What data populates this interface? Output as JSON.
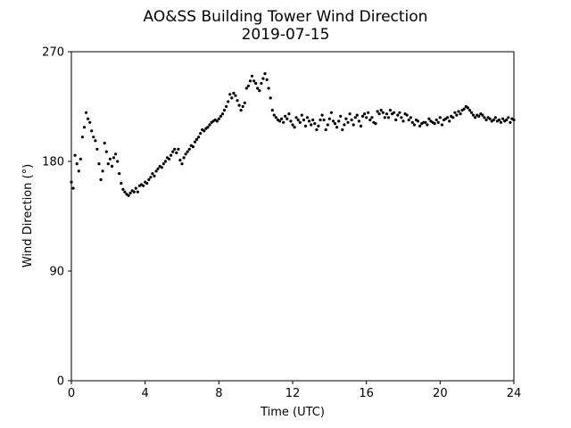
{
  "chart_data": {
    "type": "scatter",
    "title": "AO&SS Building Tower Wind Direction",
    "subtitle": "2019-07-15",
    "xlabel": "Time (UTC)",
    "ylabel": "Wind Direction (°)",
    "xlim": [
      0,
      24
    ],
    "ylim": [
      0,
      270
    ],
    "xticks": [
      0,
      4,
      8,
      12,
      16,
      20,
      24
    ],
    "yticks": [
      0,
      90,
      180,
      270
    ],
    "grid": false,
    "marker_color": "#000000",
    "x": [
      0.0,
      0.1,
      0.2,
      0.3,
      0.4,
      0.5,
      0.6,
      0.7,
      0.8,
      0.9,
      1.0,
      1.1,
      1.2,
      1.3,
      1.4,
      1.5,
      1.6,
      1.7,
      1.8,
      1.9,
      2.0,
      2.1,
      2.2,
      2.3,
      2.4,
      2.5,
      2.6,
      2.7,
      2.8,
      2.9,
      3.0,
      3.1,
      3.2,
      3.3,
      3.4,
      3.5,
      3.6,
      3.7,
      3.8,
      3.9,
      4.0,
      4.1,
      4.2,
      4.3,
      4.4,
      4.5,
      4.6,
      4.7,
      4.8,
      4.9,
      5.0,
      5.1,
      5.2,
      5.3,
      5.4,
      5.5,
      5.6,
      5.7,
      5.8,
      5.9,
      6.0,
      6.1,
      6.2,
      6.3,
      6.4,
      6.5,
      6.6,
      6.7,
      6.8,
      6.9,
      7.0,
      7.1,
      7.2,
      7.3,
      7.4,
      7.5,
      7.6,
      7.7,
      7.8,
      7.9,
      8.0,
      8.1,
      8.2,
      8.3,
      8.4,
      8.5,
      8.6,
      8.7,
      8.8,
      8.9,
      9.0,
      9.1,
      9.2,
      9.3,
      9.4,
      9.5,
      9.6,
      9.7,
      9.8,
      9.9,
      10.0,
      10.1,
      10.2,
      10.3,
      10.4,
      10.5,
      10.6,
      10.7,
      10.8,
      10.9,
      11.0,
      11.1,
      11.2,
      11.3,
      11.4,
      11.5,
      11.6,
      11.7,
      11.8,
      11.9,
      12.0,
      12.1,
      12.2,
      12.3,
      12.4,
      12.5,
      12.6,
      12.7,
      12.8,
      12.9,
      13.0,
      13.1,
      13.2,
      13.3,
      13.4,
      13.5,
      13.6,
      13.7,
      13.8,
      13.9,
      14.0,
      14.1,
      14.2,
      14.3,
      14.4,
      14.5,
      14.6,
      14.7,
      14.8,
      14.9,
      15.0,
      15.1,
      15.2,
      15.3,
      15.4,
      15.5,
      15.6,
      15.7,
      15.8,
      15.9,
      16.0,
      16.1,
      16.2,
      16.3,
      16.4,
      16.5,
      16.6,
      16.7,
      16.8,
      16.9,
      17.0,
      17.1,
      17.2,
      17.3,
      17.4,
      17.5,
      17.6,
      17.7,
      17.8,
      17.9,
      18.0,
      18.1,
      18.2,
      18.3,
      18.4,
      18.5,
      18.6,
      18.7,
      18.8,
      18.9,
      19.0,
      19.1,
      19.2,
      19.3,
      19.4,
      19.5,
      19.6,
      19.7,
      19.8,
      19.9,
      20.0,
      20.1,
      20.2,
      20.3,
      20.4,
      20.5,
      20.6,
      20.7,
      20.8,
      20.9,
      21.0,
      21.1,
      21.2,
      21.3,
      21.4,
      21.5,
      21.6,
      21.7,
      21.8,
      21.9,
      22.0,
      22.1,
      22.2,
      22.3,
      22.4,
      22.5,
      22.6,
      22.7,
      22.8,
      22.9,
      23.0,
      23.1,
      23.2,
      23.3,
      23.4,
      23.5,
      23.6,
      23.7,
      23.8,
      23.9,
      24.0
    ],
    "y": [
      163,
      158,
      185,
      178,
      172,
      182,
      200,
      208,
      220,
      215,
      212,
      205,
      200,
      197,
      190,
      178,
      165,
      172,
      195,
      188,
      178,
      182,
      176,
      183,
      186,
      180,
      170,
      162,
      157,
      155,
      153,
      152,
      154,
      156,
      155,
      158,
      155,
      160,
      161,
      160,
      163,
      162,
      165,
      167,
      170,
      168,
      172,
      174,
      176,
      175,
      178,
      180,
      183,
      182,
      185,
      188,
      190,
      187,
      190,
      181,
      178,
      183,
      186,
      188,
      190,
      193,
      192,
      196,
      198,
      200,
      203,
      206,
      205,
      207,
      208,
      210,
      212,
      213,
      214,
      213,
      215,
      217,
      219,
      222,
      225,
      229,
      235,
      232,
      236,
      234,
      230,
      226,
      222,
      225,
      228,
      240,
      242,
      246,
      250,
      246,
      244,
      240,
      238,
      244,
      248,
      252,
      247,
      240,
      232,
      222,
      218,
      216,
      214,
      213,
      215,
      212,
      217,
      215,
      219,
      213,
      210,
      208,
      216,
      214,
      212,
      218,
      214,
      209,
      216,
      213,
      210,
      214,
      211,
      206,
      209,
      214,
      218,
      214,
      206,
      210,
      215,
      220,
      213,
      211,
      208,
      213,
      217,
      206,
      210,
      215,
      212,
      219,
      214,
      210,
      216,
      218,
      213,
      209,
      217,
      219,
      216,
      220,
      214,
      216,
      212,
      211,
      221,
      219,
      222,
      220,
      216,
      219,
      216,
      222,
      219,
      220,
      214,
      218,
      220,
      216,
      213,
      219,
      218,
      214,
      216,
      212,
      210,
      214,
      213,
      209,
      211,
      212,
      212,
      210,
      215,
      213,
      212,
      211,
      214,
      212,
      216,
      210,
      214,
      215,
      216,
      213,
      217,
      216,
      220,
      218,
      221,
      219,
      222,
      223,
      225,
      224,
      222,
      220,
      218,
      216,
      218,
      217,
      219,
      218,
      216,
      214,
      216,
      215,
      213,
      214,
      216,
      213,
      214,
      212,
      215,
      213,
      214,
      216,
      212,
      215,
      214
    ]
  }
}
